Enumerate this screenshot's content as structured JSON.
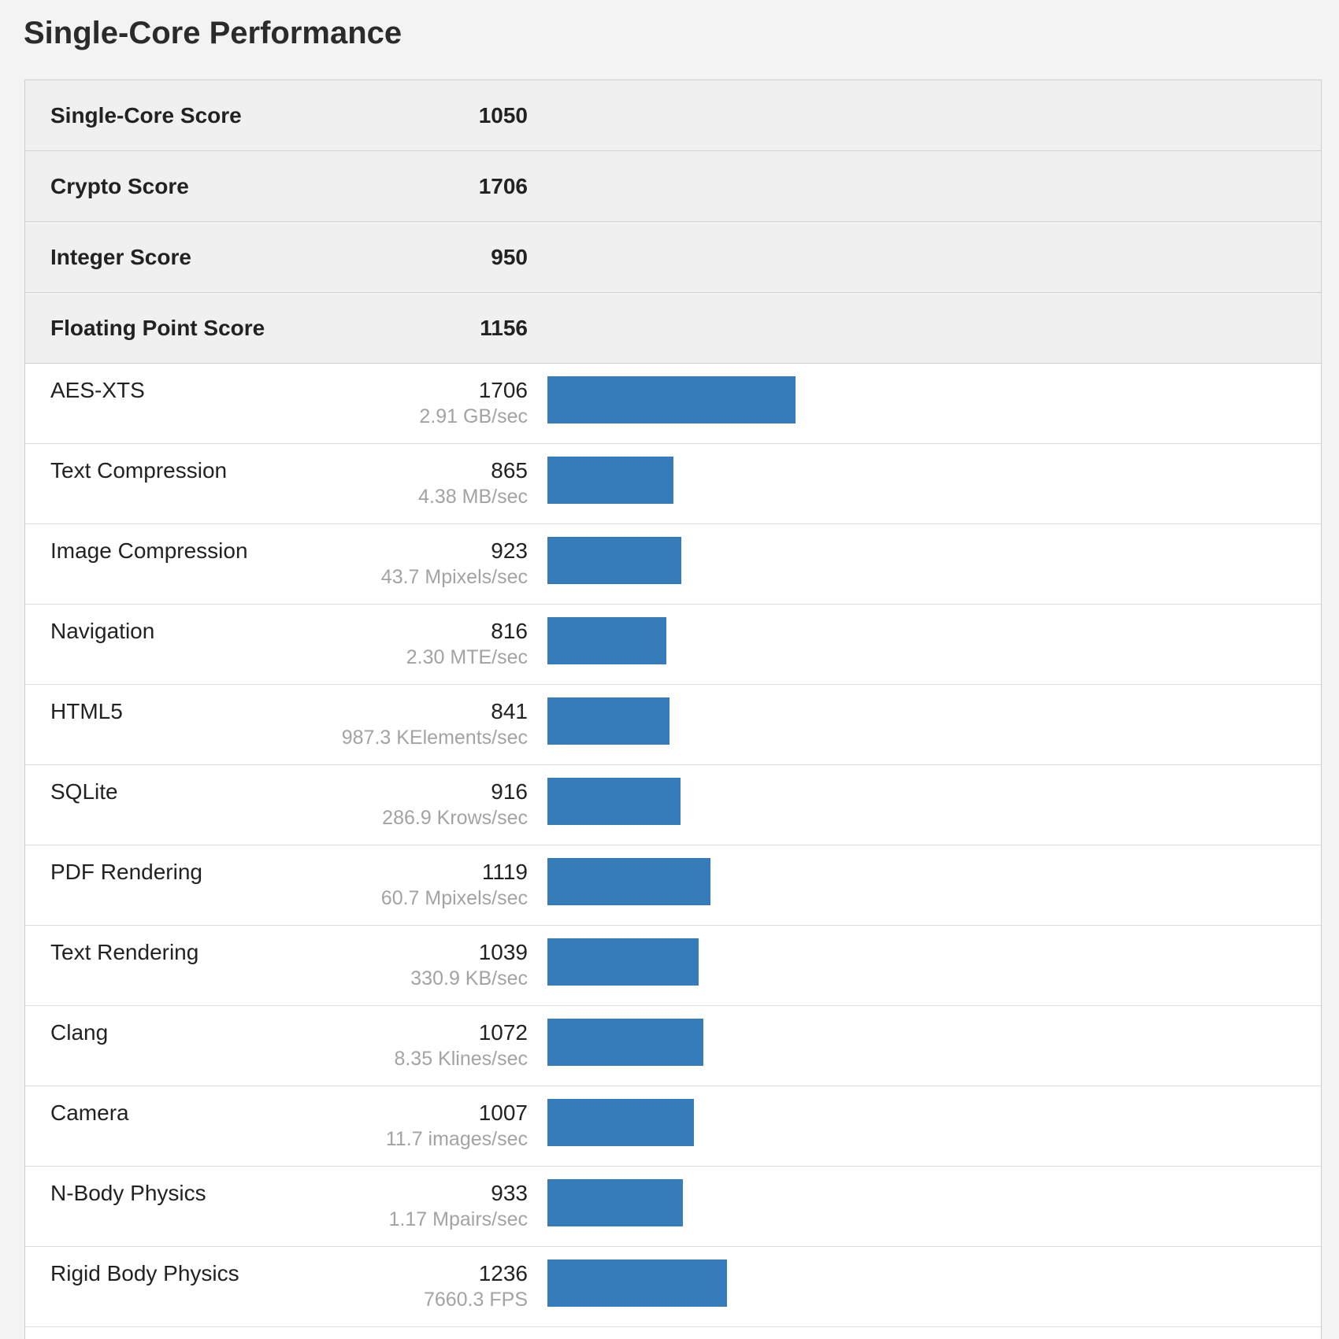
{
  "page": {
    "title": "Single-Core Performance"
  },
  "summary": [
    {
      "label": "Single-Core Score",
      "score": "1050"
    },
    {
      "label": "Crypto Score",
      "score": "1706"
    },
    {
      "label": "Integer Score",
      "score": "950"
    },
    {
      "label": "Floating Point Score",
      "score": "1156"
    }
  ],
  "colors": {
    "bar": "#377cba"
  },
  "chart_data": {
    "type": "bar",
    "orientation": "horizontal",
    "categories": [
      "AES-XTS",
      "Text Compression",
      "Image Compression",
      "Navigation",
      "HTML5",
      "SQLite",
      "PDF Rendering",
      "Text Rendering",
      "Clang",
      "Camera",
      "N-Body Physics",
      "Rigid Body Physics"
    ],
    "values": [
      1706,
      865,
      923,
      816,
      841,
      916,
      1119,
      1039,
      1072,
      1007,
      933,
      1236
    ],
    "value_labels": [
      "1706",
      "865",
      "923",
      "816",
      "841",
      "916",
      "1119",
      "1039",
      "1072",
      "1007",
      "933",
      "1236"
    ],
    "rates": [
      "2.91 GB/sec",
      "4.38 MB/sec",
      "43.7 Mpixels/sec",
      "2.30 MTE/sec",
      "987.3 KElements/sec",
      "286.9 Krows/sec",
      "60.7 Mpixels/sec",
      "330.9 KB/sec",
      "8.35 Klines/sec",
      "11.7 images/sec",
      "1.17 Mpairs/sec",
      "7660.3 FPS"
    ],
    "xlim": [
      0,
      9000
    ],
    "grid": false
  }
}
